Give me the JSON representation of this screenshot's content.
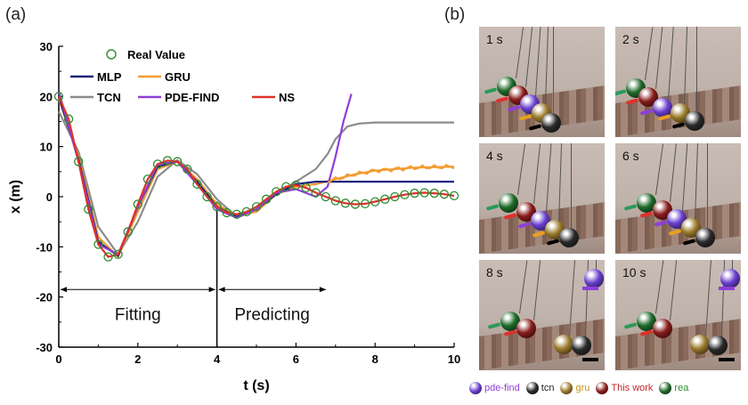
{
  "panel_a_label": "(a)",
  "panel_b_label": "(b)",
  "colors": {
    "real": "#2e8b2e",
    "MLP": "#1a237e",
    "GRU": "#f39c32",
    "TCN": "#8c8c8c",
    "PDE-FIND": "#8e3fd6",
    "NS": "#e0302b"
  },
  "chart_data": {
    "type": "line",
    "xlabel": "t (s)",
    "ylabel": "x (m)",
    "xlim": [
      0,
      10
    ],
    "ylim": [
      -30,
      30
    ],
    "xticks": [
      "0",
      "2",
      "4",
      "6",
      "8",
      "10"
    ],
    "yticks": [
      "-30",
      "-20",
      "-10",
      "0",
      "10",
      "20",
      "30"
    ],
    "grid": false,
    "legend_position": "top",
    "divider_x": 4,
    "annotations": [
      {
        "text": "Fitting",
        "from_x": 0,
        "to_x": 4,
        "arrow_y": -18.5,
        "text_y": -23.5
      },
      {
        "text": "Predicting",
        "from_x": 4,
        "to_x": 6.8,
        "arrow_y": -18.5,
        "text_y": -23.5
      }
    ],
    "series": [
      {
        "name": "Real Value",
        "style": "markers",
        "x": [
          0,
          0.25,
          0.5,
          0.75,
          1.0,
          1.25,
          1.5,
          1.75,
          2.0,
          2.25,
          2.5,
          2.75,
          3.0,
          3.25,
          3.5,
          3.75,
          4.0,
          4.25,
          4.5,
          4.75,
          5.0,
          5.25,
          5.5,
          5.75,
          6.0,
          6.25,
          6.5,
          6.75,
          7.0,
          7.25,
          7.5,
          7.75,
          8.0,
          8.25,
          8.5,
          8.75,
          9.0,
          9.25,
          9.5,
          9.75,
          10.0
        ],
        "y": [
          20.0,
          15.5,
          7.0,
          -2.5,
          -9.5,
          -12.0,
          -11.5,
          -7.0,
          -1.5,
          3.5,
          6.5,
          7.2,
          7.0,
          5.5,
          2.5,
          0.0,
          -2.0,
          -3.2,
          -3.5,
          -3.0,
          -2.0,
          -0.5,
          1.0,
          2.0,
          2.3,
          1.8,
          0.8,
          0.0,
          -0.8,
          -1.3,
          -1.5,
          -1.4,
          -1.0,
          -0.5,
          0.0,
          0.4,
          0.7,
          0.8,
          0.7,
          0.5,
          0.2
        ]
      },
      {
        "name": "MLP",
        "x": [
          0,
          0.5,
          1.0,
          1.5,
          2.0,
          2.5,
          3.0,
          3.5,
          4.0,
          4.5,
          5.0,
          5.5,
          6.0,
          6.5,
          7.0,
          7.5,
          8.0,
          9.0,
          10.0
        ],
        "y": [
          20.0,
          7.5,
          -9.0,
          -11.8,
          -2.0,
          6.0,
          7.0,
          3.0,
          -2.0,
          -4.0,
          -2.5,
          0.5,
          2.5,
          3.0,
          3.0,
          3.0,
          3.0,
          3.0,
          3.0
        ]
      },
      {
        "name": "GRU",
        "x": [
          0,
          0.5,
          1.0,
          1.5,
          2.0,
          2.5,
          3.0,
          3.5,
          4.0,
          4.5,
          5.0,
          5.5,
          6.0,
          6.5,
          7.0,
          7.5,
          8.0,
          9.0,
          10.0
        ],
        "y": [
          19.5,
          8.0,
          -8.0,
          -12.0,
          -3.0,
          5.5,
          7.0,
          3.5,
          -1.5,
          -3.8,
          -3.0,
          0.5,
          2.0,
          2.5,
          3.5,
          4.5,
          5.2,
          5.8,
          6.0
        ]
      },
      {
        "name": "TCN",
        "x": [
          0,
          0.5,
          1.0,
          1.5,
          2.0,
          2.5,
          3.0,
          3.5,
          4.0,
          4.5,
          5.0,
          5.5,
          6.0,
          6.5,
          6.8,
          7.0,
          7.3,
          7.6,
          8.0,
          9.0,
          10.0
        ],
        "y": [
          17.0,
          9.0,
          -6.0,
          -11.5,
          -5.0,
          4.0,
          7.3,
          4.5,
          -0.5,
          -4.0,
          -2.5,
          0.5,
          3.0,
          5.5,
          8.5,
          11.5,
          14.0,
          14.6,
          14.8,
          14.8,
          14.8
        ]
      },
      {
        "name": "PDE-FIND",
        "x": [
          0,
          0.5,
          1.0,
          1.5,
          2.0,
          2.5,
          3.0,
          3.5,
          4.0,
          4.5,
          5.0,
          5.5,
          6.0,
          6.5,
          6.8,
          7.0,
          7.2,
          7.4
        ],
        "y": [
          21.0,
          7.0,
          -9.5,
          -11.5,
          -2.0,
          6.5,
          7.0,
          2.5,
          -2.5,
          -4.2,
          -2.5,
          0.8,
          1.5,
          0.0,
          2.0,
          8.0,
          15.0,
          20.5
        ]
      },
      {
        "name": "NS",
        "x": [
          0,
          0.25,
          0.5,
          0.75,
          1.0,
          1.25,
          1.5,
          1.75,
          2.0,
          2.25,
          2.5,
          2.75,
          3.0,
          3.25,
          3.5,
          3.75,
          4.0,
          4.25,
          4.5,
          4.75,
          5.0,
          5.25,
          5.5,
          5.75,
          6.0,
          6.25,
          6.5,
          6.75,
          7.0,
          7.25,
          7.5,
          7.75,
          8.0,
          8.25,
          8.5,
          8.75,
          9.0,
          9.25,
          9.5,
          9.75,
          10.0
        ],
        "y": [
          20.0,
          15.5,
          7.0,
          -2.5,
          -9.5,
          -12.0,
          -11.5,
          -7.0,
          -1.5,
          3.5,
          6.5,
          7.2,
          7.0,
          5.5,
          2.5,
          0.0,
          -2.0,
          -3.2,
          -3.5,
          -3.0,
          -2.0,
          -0.5,
          1.0,
          2.0,
          2.3,
          1.8,
          0.8,
          0.0,
          -0.8,
          -1.3,
          -1.5,
          -1.4,
          -1.0,
          -0.5,
          0.0,
          0.4,
          0.7,
          0.8,
          0.7,
          0.5,
          0.2
        ]
      }
    ]
  },
  "frames": [
    {
      "time": "1 s"
    },
    {
      "time": "2 s"
    },
    {
      "time": "4 s"
    },
    {
      "time": "6 s"
    },
    {
      "time": "8 s"
    },
    {
      "time": "10 s"
    }
  ],
  "bottom_legend": [
    {
      "label": "pde-find",
      "ball": "#6a3fd0",
      "text": "#8e3fd6"
    },
    {
      "label": "tcn",
      "ball": "#2a2a2a",
      "text": "#222222"
    },
    {
      "label": "gru",
      "ball": "#9a7a2a",
      "text": "#c8941a"
    },
    {
      "label": "This work",
      "ball": "#8a1c1c",
      "text": "#c0282b"
    },
    {
      "label": "rea",
      "ball": "#1f6b2a",
      "text": "#2e8b2e"
    }
  ]
}
